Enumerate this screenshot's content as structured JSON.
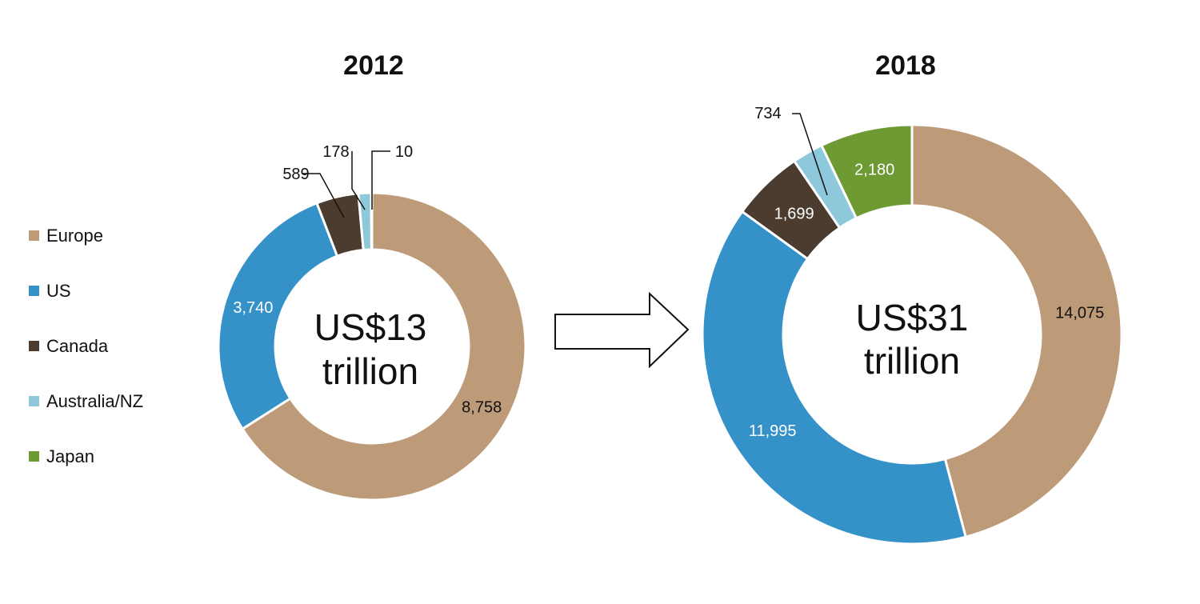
{
  "chart_data": {
    "type": "pie",
    "style": "donut",
    "legend": {
      "placement": "left",
      "items": [
        {
          "name": "Europe",
          "color": "#BD9A78"
        },
        {
          "name": "US",
          "color": "#3592C9"
        },
        {
          "name": "Canada",
          "color": "#4B3C2F"
        },
        {
          "name": "Australia/NZ",
          "color": "#8EC9DB"
        },
        {
          "name": "Japan",
          "color": "#6E9A34"
        }
      ]
    },
    "connector": {
      "type": "arrow",
      "direction": "right"
    },
    "charts": [
      {
        "title": "2012",
        "center_lines": [
          "US$13",
          "trillion"
        ],
        "slices": [
          {
            "name": "Europe",
            "value": 8758,
            "label": "8,758",
            "color": "#BD9A78"
          },
          {
            "name": "US",
            "value": 3740,
            "label": "3,740",
            "color": "#3592C9"
          },
          {
            "name": "Canada",
            "value": 589,
            "label": "589",
            "color": "#4B3C2F"
          },
          {
            "name": "Australia/NZ",
            "value": 178,
            "label": "178",
            "color": "#8EC9DB"
          },
          {
            "name": "Japan",
            "value": 10,
            "label": "10",
            "color": "#6E9A34"
          }
        ]
      },
      {
        "title": "2018",
        "center_lines": [
          "US$31",
          "trillion"
        ],
        "slices": [
          {
            "name": "Europe",
            "value": 14075,
            "label": "14,075",
            "color": "#BD9A78"
          },
          {
            "name": "US",
            "value": 11995,
            "label": "11,995",
            "color": "#3592C9"
          },
          {
            "name": "Canada",
            "value": 1699,
            "label": "1,699",
            "color": "#4B3C2F"
          },
          {
            "name": "Australia/NZ",
            "value": 734,
            "label": "734",
            "color": "#8EC9DB"
          },
          {
            "name": "Japan",
            "value": 2180,
            "label": "2,180",
            "color": "#6E9A34"
          }
        ]
      }
    ]
  }
}
